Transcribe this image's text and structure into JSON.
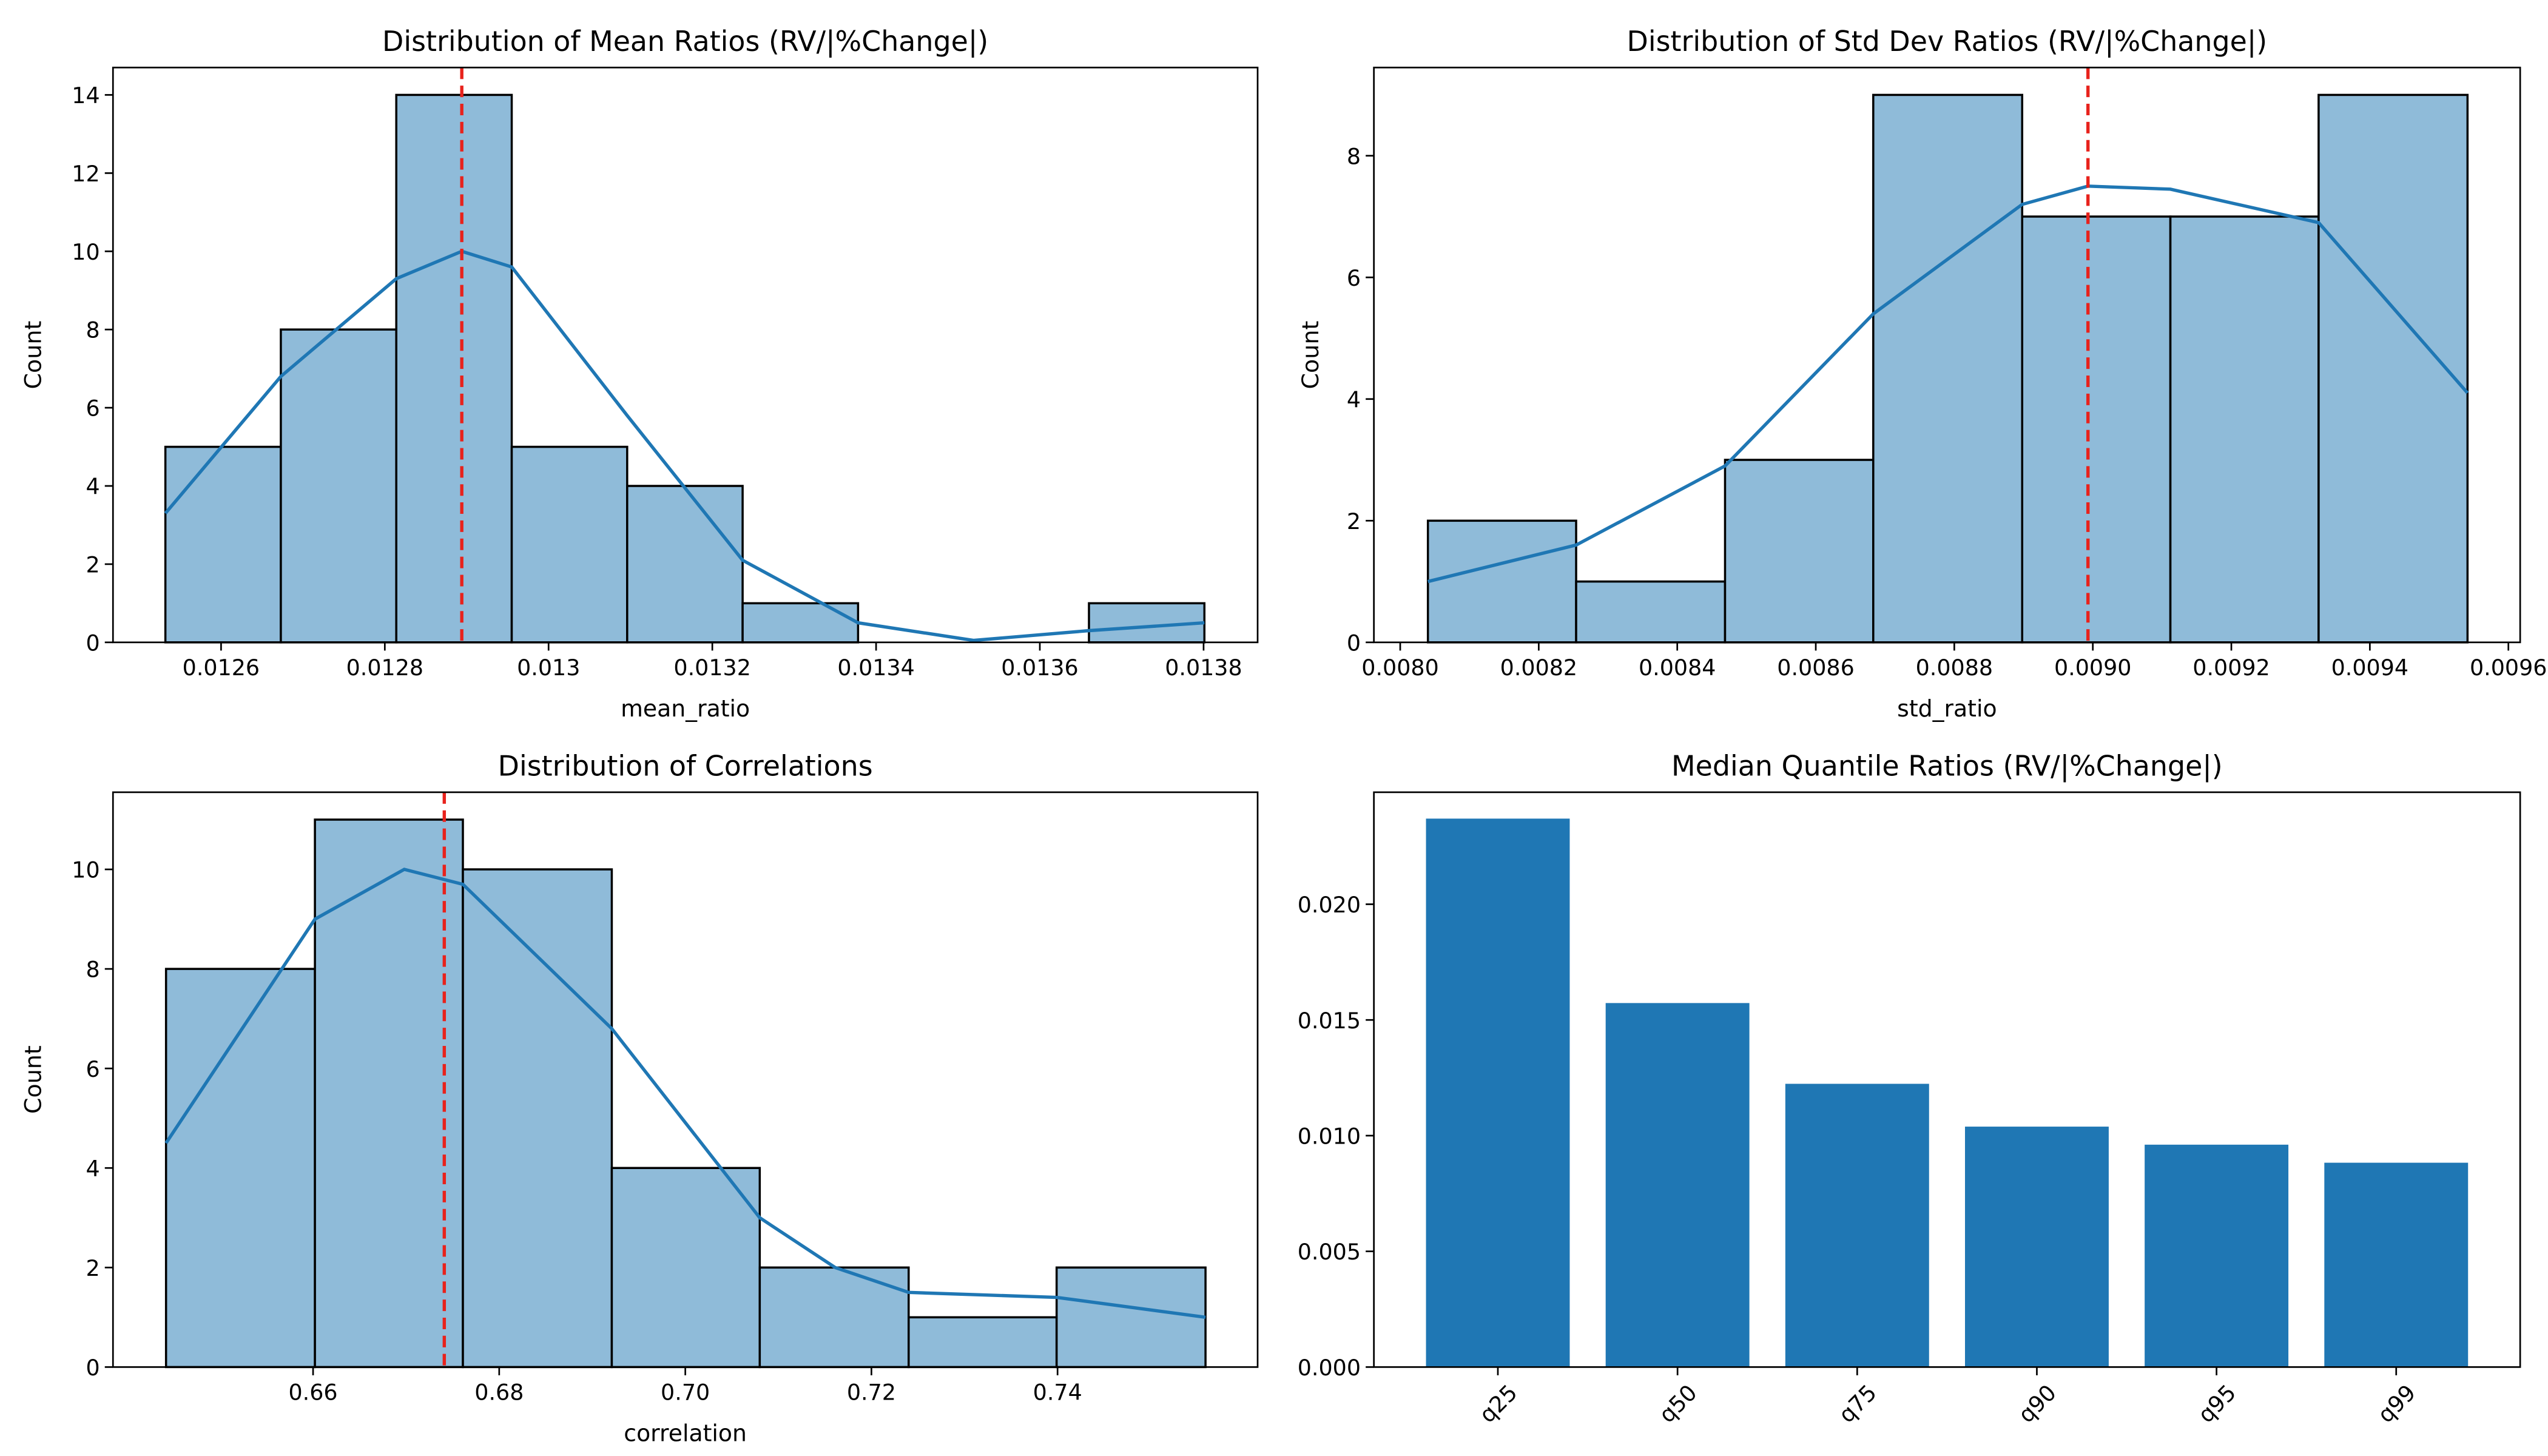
{
  "chart_data": [
    {
      "type": "histogram",
      "title": "Distribution of Mean Ratios (RV/|%Change|)",
      "xlabel": "mean_ratio",
      "ylabel": "Count",
      "bins": [
        0.012532,
        0.012673,
        0.012814,
        0.012955,
        0.013096,
        0.013237,
        0.013378,
        0.013519,
        0.01366,
        0.013801
      ],
      "values": [
        5,
        8,
        14,
        5,
        4,
        1,
        0,
        0,
        1
      ],
      "color": "#8fbbd9",
      "edgecolor": "#000000",
      "kde": {
        "color": "#1f77b4",
        "x": [
          0.012532,
          0.012673,
          0.012814,
          0.012894,
          0.012955,
          0.013096,
          0.013237,
          0.013378,
          0.013519,
          0.01366,
          0.013801
        ],
        "values": [
          3.3,
          6.8,
          9.3,
          10,
          9.6,
          5.8,
          2.1,
          0.5,
          0.05,
          0.3,
          0.5
        ]
      },
      "median_line": {
        "x": 0.012894,
        "color": "#e8221c",
        "style": "dashed"
      },
      "xlim": [
        0.012468,
        0.013866
      ],
      "ylim": [
        0,
        14.7
      ],
      "xticks": [
        0.0126,
        0.0128,
        0.013,
        0.0132,
        0.0134,
        0.0136,
        0.0138
      ],
      "yticks": [
        0,
        2,
        4,
        6,
        8,
        10,
        12,
        14
      ]
    },
    {
      "type": "histogram",
      "title": "Distribution of Std Dev Ratios (RV/|%Change|)",
      "xlabel": "std_ratio",
      "ylabel": "Count",
      "bins": [
        0.00804,
        0.008254,
        0.008469,
        0.008683,
        0.008898,
        0.009112,
        0.009326,
        0.009541
      ],
      "values": [
        2,
        1,
        3,
        9,
        7,
        7,
        9
      ],
      "color": "#8fbbd9",
      "edgecolor": "#000000",
      "kde": {
        "color": "#1f77b4",
        "x": [
          0.00804,
          0.008254,
          0.008469,
          0.008683,
          0.008898,
          0.008993,
          0.009112,
          0.009326,
          0.009541
        ],
        "values": [
          1.0,
          1.6,
          2.9,
          5.4,
          7.2,
          7.5,
          7.45,
          6.9,
          4.1
        ]
      },
      "median_line": {
        "x": 0.008993,
        "color": "#e8221c",
        "style": "dashed"
      },
      "xlim": [
        0.007962,
        0.009617
      ],
      "ylim": [
        0,
        9.45
      ],
      "xticks": [
        {
          "value": 0.008,
          "label": "0.0080"
        },
        {
          "value": 0.0082,
          "label": "0.0082"
        },
        {
          "value": 0.0084,
          "label": "0.0084"
        },
        {
          "value": 0.0086,
          "label": "0.0086"
        },
        {
          "value": 0.0088,
          "label": "0.0088"
        },
        {
          "value": 0.009,
          "label": "0.0090"
        },
        {
          "value": 0.0092,
          "label": "0.0092"
        },
        {
          "value": 0.0094,
          "label": "0.0094"
        },
        {
          "value": 0.0096,
          "label": "0.0096"
        }
      ],
      "yticks": [
        0,
        2,
        4,
        6,
        8
      ]
    },
    {
      "type": "histogram",
      "title": "Distribution of Correlations",
      "xlabel": "correlation",
      "ylabel": "Count",
      "bins": [
        0.6442,
        0.6602,
        0.6761,
        0.6921,
        0.708,
        0.724,
        0.7399,
        0.7559
      ],
      "values": [
        8,
        11,
        10,
        4,
        2,
        1,
        2
      ],
      "color": "#8fbbd9",
      "edgecolor": "#000000",
      "kde": {
        "color": "#1f77b4",
        "x": [
          0.6442,
          0.6602,
          0.6698,
          0.6761,
          0.6921,
          0.708,
          0.7161,
          0.724,
          0.7399,
          0.7559
        ],
        "values": [
          4.5,
          9.0,
          10,
          9.7,
          6.8,
          3.0,
          2.0,
          1.5,
          1.4,
          1.0
        ]
      },
      "median_line": {
        "x": 0.6741,
        "color": "#e8221c",
        "style": "dashed"
      },
      "xlim": [
        0.6385,
        0.7615
      ],
      "ylim": [
        0,
        11.55
      ],
      "xticks": [
        {
          "value": 0.66,
          "label": "0.66"
        },
        {
          "value": 0.68,
          "label": "0.68"
        },
        {
          "value": 0.7,
          "label": "0.70"
        },
        {
          "value": 0.72,
          "label": "0.72"
        },
        {
          "value": 0.74,
          "label": "0.74"
        }
      ],
      "yticks": [
        0,
        2,
        4,
        6,
        8,
        10
      ]
    },
    {
      "type": "bar",
      "title": "Median Quantile Ratios (RV/|%Change|)",
      "categories": [
        "q25",
        "q50",
        "q75",
        "q90",
        "q95",
        "q99"
      ],
      "values": [
        0.0237,
        0.01573,
        0.01224,
        0.01039,
        0.00961,
        0.00883
      ],
      "color": "#1f77b4",
      "ylim": [
        0,
        0.02484
      ],
      "yticks": [
        {
          "value": 0,
          "label": "0.000"
        },
        {
          "value": 0.005,
          "label": "0.005"
        },
        {
          "value": 0.01,
          "label": "0.010"
        },
        {
          "value": 0.015,
          "label": "0.015"
        },
        {
          "value": 0.02,
          "label": "0.020"
        }
      ]
    }
  ]
}
